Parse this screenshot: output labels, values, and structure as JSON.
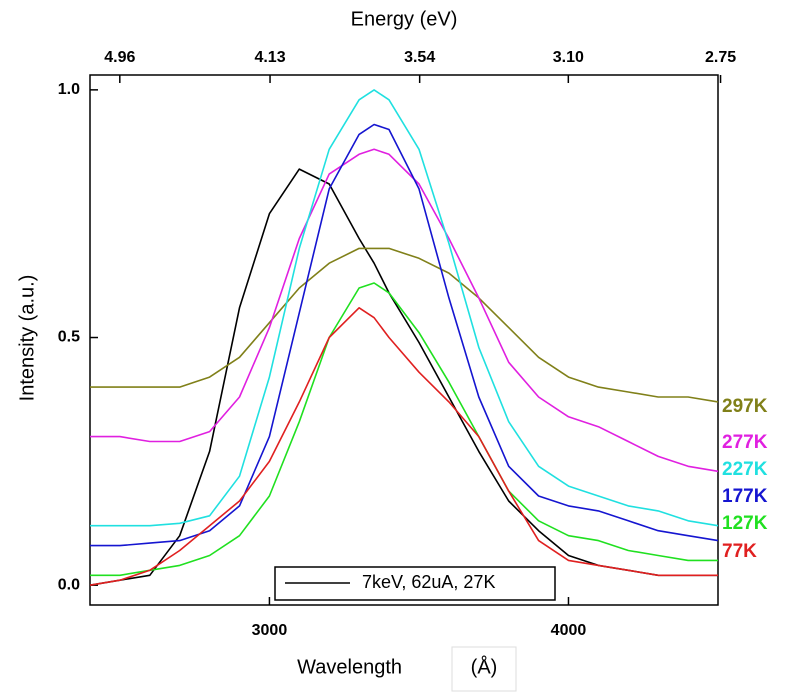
{
  "chart_data": {
    "type": "line",
    "x2_title": "Energy (eV)",
    "xlabel": "Wavelength",
    "xlabel_unit": "(Å)",
    "ylabel": "Intensity (a.u.)",
    "x": [
      2400,
      2500,
      2600,
      2700,
      2800,
      2900,
      3000,
      3100,
      3200,
      3300,
      3350,
      3400,
      3500,
      3600,
      3700,
      3800,
      3900,
      4000,
      4100,
      4200,
      4300,
      4400,
      4500
    ],
    "xlim": [
      2400,
      4500
    ],
    "ylim": [
      -0.04,
      1.03
    ],
    "xticks": [
      3000,
      4000
    ],
    "yticks": [
      {
        "value": 0,
        "label": "0.0"
      },
      {
        "value": 0.5,
        "label": "0.5"
      },
      {
        "value": 1,
        "label": "1.0"
      }
    ],
    "x2ticks": [
      4.96,
      4.13,
      3.54,
      {
        "value": 3.1,
        "label": "3.10"
      },
      2.75
    ],
    "series": [
      {
        "name": "7keV, 62uA, 27K",
        "color": "#000000",
        "label_at": "legend",
        "values": [
          0.0,
          0.01,
          0.02,
          0.1,
          0.27,
          0.56,
          0.75,
          0.84,
          0.81,
          0.7,
          0.65,
          0.59,
          0.49,
          0.38,
          0.27,
          0.17,
          0.11,
          0.06,
          0.04,
          0.03,
          0.02,
          0.02,
          0.02
        ]
      },
      {
        "name": "297K",
        "color": "#808019",
        "label_at": "right",
        "values": [
          0.4,
          0.4,
          0.4,
          0.4,
          0.42,
          0.46,
          0.53,
          0.6,
          0.65,
          0.68,
          0.68,
          0.68,
          0.66,
          0.63,
          0.58,
          0.52,
          0.46,
          0.42,
          0.4,
          0.39,
          0.38,
          0.38,
          0.37
        ]
      },
      {
        "name": "277K",
        "color": "#e020e0",
        "label_at": "right",
        "values": [
          0.3,
          0.3,
          0.29,
          0.29,
          0.31,
          0.38,
          0.52,
          0.7,
          0.83,
          0.87,
          0.88,
          0.87,
          0.81,
          0.7,
          0.58,
          0.45,
          0.38,
          0.34,
          0.32,
          0.29,
          0.26,
          0.24,
          0.23
        ]
      },
      {
        "name": "227K",
        "color": "#20e0e0",
        "label_at": "right",
        "values": [
          0.12,
          0.12,
          0.12,
          0.125,
          0.14,
          0.22,
          0.42,
          0.68,
          0.88,
          0.98,
          1.0,
          0.98,
          0.88,
          0.69,
          0.48,
          0.33,
          0.24,
          0.2,
          0.18,
          0.16,
          0.15,
          0.13,
          0.12
        ]
      },
      {
        "name": "177K",
        "color": "#1515d0",
        "label_at": "right",
        "values": [
          0.08,
          0.08,
          0.085,
          0.09,
          0.11,
          0.16,
          0.3,
          0.55,
          0.8,
          0.91,
          0.93,
          0.92,
          0.8,
          0.58,
          0.38,
          0.24,
          0.18,
          0.16,
          0.15,
          0.13,
          0.11,
          0.1,
          0.09
        ]
      },
      {
        "name": "127K",
        "color": "#20e020",
        "label_at": "right",
        "values": [
          0.02,
          0.02,
          0.03,
          0.04,
          0.06,
          0.1,
          0.18,
          0.33,
          0.5,
          0.6,
          0.61,
          0.59,
          0.51,
          0.41,
          0.3,
          0.19,
          0.13,
          0.1,
          0.09,
          0.07,
          0.06,
          0.05,
          0.05
        ]
      },
      {
        "name": "77K",
        "color": "#e02020",
        "label_at": "right",
        "values": [
          0.0,
          0.01,
          0.03,
          0.07,
          0.12,
          0.17,
          0.25,
          0.37,
          0.5,
          0.56,
          0.54,
          0.5,
          0.43,
          0.37,
          0.3,
          0.19,
          0.09,
          0.05,
          0.04,
          0.03,
          0.02,
          0.02,
          0.02
        ]
      }
    ]
  }
}
